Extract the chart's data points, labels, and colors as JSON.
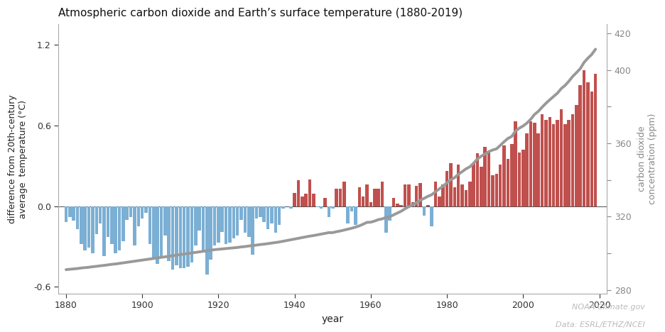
{
  "title": "Atmospheric carbon dioxide and Earth’s surface temperature (1880-2019)",
  "ylabel_left": "difference from 20th-century\naverage  temperature (°C)",
  "ylabel_right": "carbon dioxide\nconcentration (ppm)",
  "xlabel": "year",
  "attribution1": "NOAA Climate.gov",
  "attribution2": "Data: ESRL/ETHZ/NCEI",
  "ylim_left": [
    -0.65,
    1.35
  ],
  "ylim_right": [
    278,
    425
  ],
  "xlim": [
    1878,
    2022
  ],
  "yticks_left": [
    -0.6,
    0.0,
    0.6,
    1.2
  ],
  "ytick_labels_left": [
    "-0.6",
    "0.0",
    "0.6",
    "1.2"
  ],
  "yticks_right": [
    280,
    300,
    320,
    340,
    360,
    380,
    400,
    420
  ],
  "ytick_labels_right": [
    "280",
    "",
    "320",
    "",
    "360",
    "",
    "400",
    "420"
  ],
  "xticks": [
    1880,
    1900,
    1920,
    1940,
    1960,
    1980,
    2000,
    2020
  ],
  "color_blue": "#7bafd4",
  "color_red": "#c0504d",
  "color_line": "#999999",
  "background_color": "#ffffff",
  "years": [
    1880,
    1881,
    1882,
    1883,
    1884,
    1885,
    1886,
    1887,
    1888,
    1889,
    1890,
    1891,
    1892,
    1893,
    1894,
    1895,
    1896,
    1897,
    1898,
    1899,
    1900,
    1901,
    1902,
    1903,
    1904,
    1905,
    1906,
    1907,
    1908,
    1909,
    1910,
    1911,
    1912,
    1913,
    1914,
    1915,
    1916,
    1917,
    1918,
    1919,
    1920,
    1921,
    1922,
    1923,
    1924,
    1925,
    1926,
    1927,
    1928,
    1929,
    1930,
    1931,
    1932,
    1933,
    1934,
    1935,
    1936,
    1937,
    1938,
    1939,
    1940,
    1941,
    1942,
    1943,
    1944,
    1945,
    1946,
    1947,
    1948,
    1949,
    1950,
    1951,
    1952,
    1953,
    1954,
    1955,
    1956,
    1957,
    1958,
    1959,
    1960,
    1961,
    1962,
    1963,
    1964,
    1965,
    1966,
    1967,
    1968,
    1969,
    1970,
    1971,
    1972,
    1973,
    1974,
    1975,
    1976,
    1977,
    1978,
    1979,
    1980,
    1981,
    1982,
    1983,
    1984,
    1985,
    1986,
    1987,
    1988,
    1989,
    1990,
    1991,
    1992,
    1993,
    1994,
    1995,
    1996,
    1997,
    1998,
    1999,
    2000,
    2001,
    2002,
    2003,
    2004,
    2005,
    2006,
    2007,
    2008,
    2009,
    2010,
    2011,
    2012,
    2013,
    2014,
    2015,
    2016,
    2017,
    2018,
    2019
  ],
  "temp_anomaly": [
    -0.12,
    -0.08,
    -0.11,
    -0.17,
    -0.28,
    -0.33,
    -0.31,
    -0.35,
    -0.21,
    -0.13,
    -0.37,
    -0.23,
    -0.28,
    -0.35,
    -0.33,
    -0.26,
    -0.1,
    -0.08,
    -0.29,
    -0.15,
    -0.09,
    -0.05,
    -0.28,
    -0.38,
    -0.43,
    -0.37,
    -0.22,
    -0.41,
    -0.47,
    -0.44,
    -0.46,
    -0.46,
    -0.45,
    -0.42,
    -0.29,
    -0.18,
    -0.34,
    -0.51,
    -0.4,
    -0.29,
    -0.27,
    -0.19,
    -0.28,
    -0.27,
    -0.24,
    -0.22,
    -0.1,
    -0.2,
    -0.23,
    -0.36,
    -0.09,
    -0.08,
    -0.12,
    -0.17,
    -0.13,
    -0.2,
    -0.14,
    -0.02,
    0.0,
    -0.02,
    0.1,
    0.19,
    0.07,
    0.09,
    0.2,
    0.09,
    -0.01,
    -0.02,
    0.06,
    -0.08,
    -0.02,
    0.13,
    0.13,
    0.18,
    -0.13,
    -0.04,
    -0.14,
    0.14,
    0.07,
    0.16,
    0.03,
    0.13,
    0.13,
    0.18,
    -0.2,
    -0.11,
    0.06,
    0.02,
    0.01,
    0.16,
    0.16,
    0.03,
    0.15,
    0.17,
    -0.07,
    0.01,
    -0.15,
    0.18,
    0.07,
    0.16,
    0.26,
    0.32,
    0.14,
    0.31,
    0.16,
    0.12,
    0.18,
    0.32,
    0.39,
    0.29,
    0.44,
    0.4,
    0.23,
    0.24,
    0.31,
    0.45,
    0.35,
    0.46,
    0.63,
    0.4,
    0.42,
    0.54,
    0.63,
    0.62,
    0.54,
    0.68,
    0.64,
    0.66,
    0.61,
    0.64,
    0.72,
    0.61,
    0.64,
    0.68,
    0.75,
    0.9,
    1.01,
    0.92,
    0.85,
    0.98
  ],
  "co2_ppm": [
    291.1,
    291.3,
    291.5,
    291.7,
    292.0,
    292.2,
    292.4,
    292.7,
    292.9,
    293.2,
    293.4,
    293.7,
    294.0,
    294.2,
    294.5,
    294.8,
    295.1,
    295.4,
    295.7,
    296.0,
    296.3,
    296.6,
    296.9,
    297.2,
    297.5,
    297.8,
    298.1,
    298.4,
    298.7,
    299.0,
    299.3,
    299.6,
    299.9,
    300.2,
    300.5,
    300.8,
    301.1,
    301.4,
    301.7,
    302.0,
    302.2,
    302.4,
    302.6,
    302.8,
    303.0,
    303.2,
    303.5,
    303.7,
    304.0,
    304.2,
    304.5,
    304.8,
    305.0,
    305.3,
    305.6,
    305.9,
    306.2,
    306.6,
    307.0,
    307.4,
    307.8,
    308.2,
    308.6,
    309.0,
    309.4,
    309.7,
    310.1,
    310.5,
    310.9,
    311.3,
    311.3,
    311.8,
    312.2,
    312.7,
    313.2,
    313.7,
    314.3,
    315.0,
    315.9,
    316.9,
    317.0,
    317.6,
    318.4,
    318.8,
    319.6,
    320.0,
    321.0,
    322.0,
    323.0,
    324.3,
    325.5,
    326.4,
    327.6,
    329.0,
    330.0,
    331.1,
    332.0,
    333.6,
    335.2,
    336.7,
    338.5,
    340.1,
    341.3,
    343.1,
    344.6,
    346.1,
    347.2,
    349.2,
    351.5,
    353.0,
    354.2,
    355.5,
    356.4,
    357.0,
    358.9,
    360.9,
    362.7,
    363.8,
    366.7,
    368.3,
    369.5,
    371.1,
    373.2,
    375.8,
    377.5,
    379.8,
    381.9,
    383.8,
    385.6,
    387.4,
    389.9,
    391.6,
    393.9,
    396.5,
    398.6,
    400.8,
    404.2,
    406.5,
    408.5,
    411.4
  ]
}
